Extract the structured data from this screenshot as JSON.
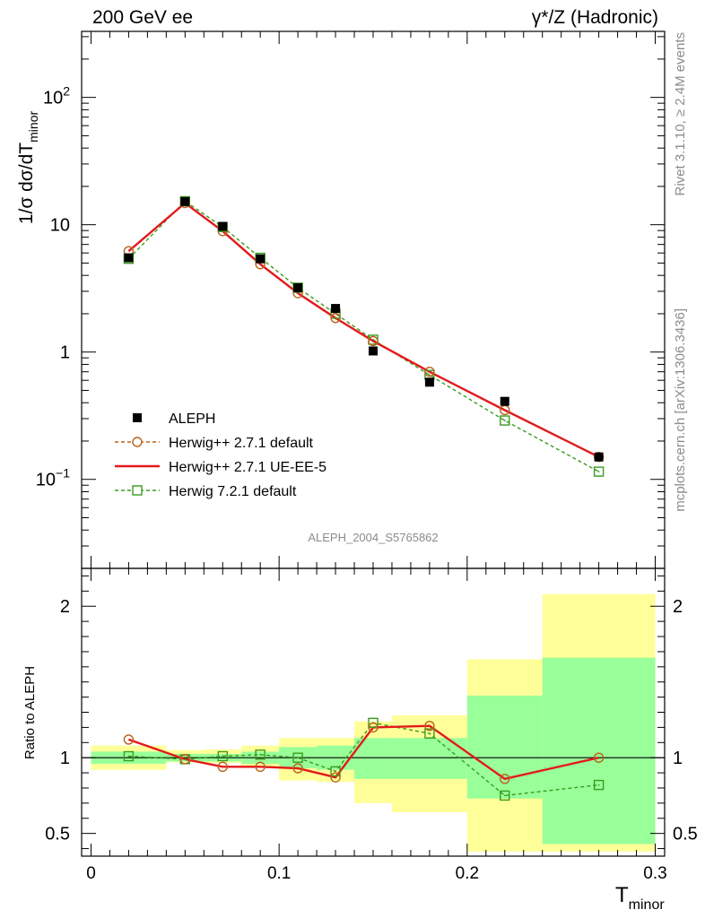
{
  "header": {
    "left": "200 GeV ee",
    "right": "γ*/Z (Hadronic)"
  },
  "side_labels": {
    "rivet": "Rivet 3.1.10, ≥ 2.4M events",
    "mcplots": "mcplots.cern.ch [arXiv:1306.3436]"
  },
  "watermark": "ALEPH_2004_S5765862",
  "colors": {
    "aleph": "#000000",
    "herwig_default": "#b8621b",
    "herwig_ueee5": "#e31a1c",
    "herwig721": "#3a9b1f",
    "band_outer": "#ffff99",
    "band_inner": "#99ff99"
  },
  "chart_data": [
    {
      "type": "scatter",
      "name": "main",
      "ylabel": "1/σ  dσ/dT",
      "ylabel_sub": "minor",
      "yscale": "log",
      "ylim": [
        0.02,
        330
      ],
      "xlim": [
        -0.005,
        0.305
      ],
      "ytick_labels": [
        {
          "value": 0.1,
          "base": "10",
          "exp": "−1"
        },
        {
          "value": 1,
          "base": "1",
          "exp": ""
        },
        {
          "value": 10,
          "base": "10",
          "exp": ""
        },
        {
          "value": 100,
          "base": "10",
          "exp": "2"
        }
      ],
      "legend_position": "bottom-left",
      "legend": [
        {
          "key": "aleph",
          "label": "ALEPH"
        },
        {
          "key": "herwig_default",
          "label": "Herwig++ 2.7.1 default"
        },
        {
          "key": "herwig_ueee5",
          "label": "Herwig++ 2.7.1 UE-EE-5"
        },
        {
          "key": "herwig721",
          "label": "Herwig 7.2.1 default"
        }
      ],
      "x": [
        0.02,
        0.05,
        0.07,
        0.09,
        0.11,
        0.13,
        0.15,
        0.18,
        0.22,
        0.27
      ],
      "series": [
        {
          "key": "aleph",
          "values": [
            5.5,
            15.2,
            9.7,
            5.4,
            3.2,
            2.2,
            1.02,
            0.58,
            0.41,
            0.15
          ]
        },
        {
          "key": "herwig_default",
          "values": [
            6.2,
            14.8,
            8.9,
            4.9,
            2.9,
            1.85,
            1.22,
            0.7,
            0.35,
            0.15
          ]
        },
        {
          "key": "herwig_ueee5",
          "values": [
            6.2,
            14.8,
            8.9,
            4.9,
            2.9,
            1.85,
            1.22,
            0.7,
            0.35,
            0.15
          ]
        },
        {
          "key": "herwig721",
          "values": [
            5.4,
            15.3,
            9.6,
            5.5,
            3.2,
            2.0,
            1.25,
            0.66,
            0.29,
            0.115
          ]
        }
      ]
    },
    {
      "type": "line",
      "name": "ratio",
      "ylabel": "Ratio to ALEPH",
      "xlabel": "T",
      "xlabel_sub": "minor",
      "ylim": [
        0.35,
        2.25
      ],
      "xlim": [
        -0.005,
        0.305
      ],
      "yticks": [
        0.5,
        1,
        2
      ],
      "ytick_labels": [
        "0.5",
        "1",
        "2"
      ],
      "xticks": [
        0,
        0.1,
        0.2,
        0.3
      ],
      "xtick_labels": [
        "0",
        "0.1",
        "0.2",
        "0.3"
      ],
      "bins": [
        {
          "x0": 0.0,
          "x1": 0.04,
          "inner": [
            0.96,
            1.04
          ],
          "outer": [
            0.92,
            1.08
          ]
        },
        {
          "x0": 0.04,
          "x1": 0.06,
          "inner": [
            0.975,
            1.025
          ],
          "outer": [
            0.97,
            1.05
          ]
        },
        {
          "x0": 0.06,
          "x1": 0.08,
          "inner": [
            0.975,
            1.025
          ],
          "outer": [
            0.965,
            1.055
          ]
        },
        {
          "x0": 0.08,
          "x1": 0.1,
          "inner": [
            0.96,
            1.04
          ],
          "outer": [
            0.94,
            1.08
          ]
        },
        {
          "x0": 0.1,
          "x1": 0.12,
          "inner": [
            0.93,
            1.07
          ],
          "outer": [
            0.85,
            1.13
          ]
        },
        {
          "x0": 0.12,
          "x1": 0.14,
          "inner": [
            0.92,
            1.08
          ],
          "outer": [
            0.84,
            1.13
          ]
        },
        {
          "x0": 0.14,
          "x1": 0.16,
          "inner": [
            0.86,
            1.13
          ],
          "outer": [
            0.7,
            1.24
          ]
        },
        {
          "x0": 0.16,
          "x1": 0.2,
          "inner": [
            0.86,
            1.13
          ],
          "outer": [
            0.64,
            1.28
          ]
        },
        {
          "x0": 0.2,
          "x1": 0.24,
          "inner": [
            0.73,
            1.41
          ],
          "outer": [
            0.38,
            1.65
          ]
        },
        {
          "x0": 0.24,
          "x1": 0.3,
          "inner": [
            0.43,
            1.66
          ],
          "outer": [
            0.38,
            2.08
          ]
        }
      ],
      "x": [
        0.02,
        0.05,
        0.07,
        0.09,
        0.11,
        0.13,
        0.15,
        0.18,
        0.22,
        0.27
      ],
      "series": [
        {
          "key": "herwig_default",
          "values": [
            1.12,
            0.99,
            0.94,
            0.94,
            0.93,
            0.87,
            1.2,
            1.21,
            0.86,
            1.0
          ]
        },
        {
          "key": "herwig_ueee5",
          "values": [
            1.12,
            0.99,
            0.94,
            0.94,
            0.93,
            0.87,
            1.2,
            1.21,
            0.86,
            1.0
          ]
        },
        {
          "key": "herwig721",
          "values": [
            1.01,
            0.99,
            1.01,
            1.02,
            1.0,
            0.91,
            1.23,
            1.16,
            0.75,
            0.82
          ]
        }
      ]
    }
  ]
}
